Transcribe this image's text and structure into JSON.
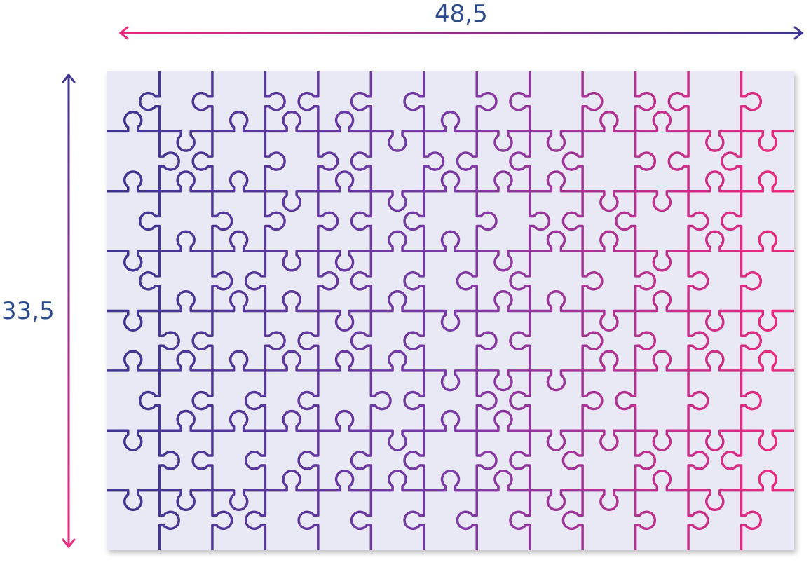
{
  "dimensions": {
    "width_label": "48,5",
    "height_label": "33,5"
  },
  "puzzle": {
    "columns": 13,
    "rows": 8
  },
  "colors": {
    "line_start": "#3d3590",
    "line_end": "#ea2a7c",
    "board": "#e9e9f5",
    "label": "#2b4a8c"
  }
}
